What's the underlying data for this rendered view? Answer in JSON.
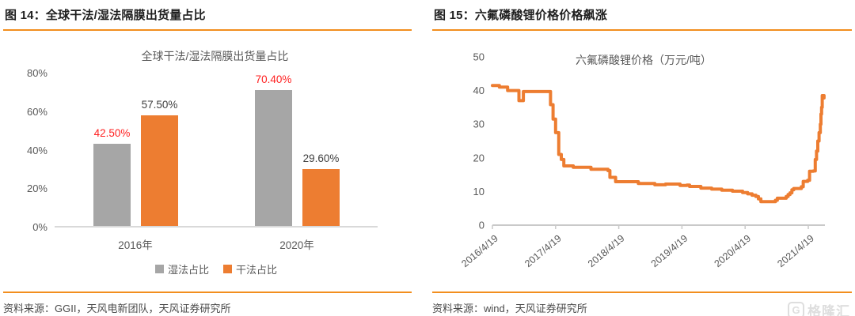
{
  "left_panel": {
    "title": "图 14：全球干法/湿法隔膜出货量占比",
    "source": "资料来源：GGII，天风电新团队，天风证券研究所"
  },
  "right_panel": {
    "title": "图 15：六氟磷酸锂价格价格飙涨",
    "source": "资料来源：wind，天风证券研究所"
  },
  "watermark": {
    "icon": "G",
    "text": "格隆汇",
    "color": "#dedede"
  },
  "colors": {
    "accent_rule": "#F28E1E",
    "orange": "#ED7D31",
    "gray": "#A6A6A6",
    "red_label": "#FF1F1F",
    "dark_label": "#404040",
    "axis_text": "#595959",
    "axis_line": "#c9c9c9"
  },
  "chart_data": [
    {
      "type": "bar",
      "title": "全球干法/湿法隔膜出货量占比",
      "categories": [
        "2016年",
        "2020年"
      ],
      "series": [
        {
          "name": "湿法占比",
          "color": "#A6A6A6",
          "values": [
            42.5,
            70.4
          ],
          "labels": [
            "42.50%",
            "70.40%"
          ],
          "label_color": "#FF1F1F"
        },
        {
          "name": "干法占比",
          "color": "#ED7D31",
          "values": [
            57.5,
            29.6
          ],
          "labels": [
            "57.50%",
            "29.60%"
          ],
          "label_color": "#404040"
        }
      ],
      "ylim": [
        0,
        80
      ],
      "y_ticks": [
        0,
        20,
        40,
        60,
        80
      ],
      "y_tick_suffix": "%",
      "grid": false,
      "legend_position": "bottom"
    },
    {
      "type": "line",
      "title": "六氟磷酸锂价格（万元/吨）",
      "line_color": "#ED7D31",
      "ylim": [
        0,
        50
      ],
      "y_ticks": [
        0,
        10,
        20,
        30,
        40,
        50
      ],
      "x_ticks": [
        "2016/4/19",
        "2017/4/19",
        "2018/4/19",
        "2019/4/19",
        "2020/4/19",
        "2021/4/19"
      ],
      "x_unit": "years_since_2016/4/19",
      "grid": false,
      "legend_position": "none",
      "points": [
        [
          0.0,
          41.5
        ],
        [
          0.1,
          41.5
        ],
        [
          0.11,
          41.0
        ],
        [
          0.22,
          41.0
        ],
        [
          0.24,
          40.0
        ],
        [
          0.4,
          40.0
        ],
        [
          0.42,
          37.0
        ],
        [
          0.47,
          37.0
        ],
        [
          0.49,
          39.7
        ],
        [
          0.9,
          39.7
        ],
        [
          0.92,
          35.8
        ],
        [
          0.96,
          31.5
        ],
        [
          1.0,
          27.5
        ],
        [
          1.05,
          21.0
        ],
        [
          1.09,
          19.5
        ],
        [
          1.13,
          17.6
        ],
        [
          1.26,
          17.6
        ],
        [
          1.28,
          17.2
        ],
        [
          1.54,
          17.2
        ],
        [
          1.56,
          16.6
        ],
        [
          1.8,
          16.6
        ],
        [
          1.83,
          16.2
        ],
        [
          1.86,
          14.2
        ],
        [
          1.92,
          14.2
        ],
        [
          1.95,
          12.9
        ],
        [
          2.28,
          12.9
        ],
        [
          2.31,
          12.4
        ],
        [
          2.54,
          12.4
        ],
        [
          2.57,
          12.0
        ],
        [
          2.71,
          12.0
        ],
        [
          2.74,
          12.2
        ],
        [
          2.94,
          12.2
        ],
        [
          2.97,
          11.8
        ],
        [
          3.08,
          11.9
        ],
        [
          3.12,
          11.5
        ],
        [
          3.3,
          11.0
        ],
        [
          3.47,
          10.7
        ],
        [
          3.63,
          10.4
        ],
        [
          3.8,
          10.1
        ],
        [
          3.96,
          9.7
        ],
        [
          4.04,
          9.3
        ],
        [
          4.11,
          8.9
        ],
        [
          4.17,
          8.5
        ],
        [
          4.21,
          7.8
        ],
        [
          4.25,
          7.0
        ],
        [
          4.45,
          7.0
        ],
        [
          4.48,
          7.4
        ],
        [
          4.51,
          8.0
        ],
        [
          4.62,
          8.0
        ],
        [
          4.65,
          8.5
        ],
        [
          4.68,
          9.1
        ],
        [
          4.71,
          9.6
        ],
        [
          4.74,
          10.5
        ],
        [
          4.77,
          10.9
        ],
        [
          4.87,
          10.9
        ],
        [
          4.89,
          11.4
        ],
        [
          4.92,
          13.0
        ],
        [
          4.99,
          13.3
        ],
        [
          5.02,
          16.0
        ],
        [
          5.08,
          16.1
        ],
        [
          5.11,
          19.5
        ],
        [
          5.13,
          22.0
        ],
        [
          5.15,
          25.0
        ],
        [
          5.17,
          27.5
        ],
        [
          5.19,
          30.0
        ],
        [
          5.2,
          33.0
        ],
        [
          5.21,
          35.0
        ],
        [
          5.22,
          38.5
        ],
        [
          5.25,
          37.8
        ]
      ]
    }
  ]
}
